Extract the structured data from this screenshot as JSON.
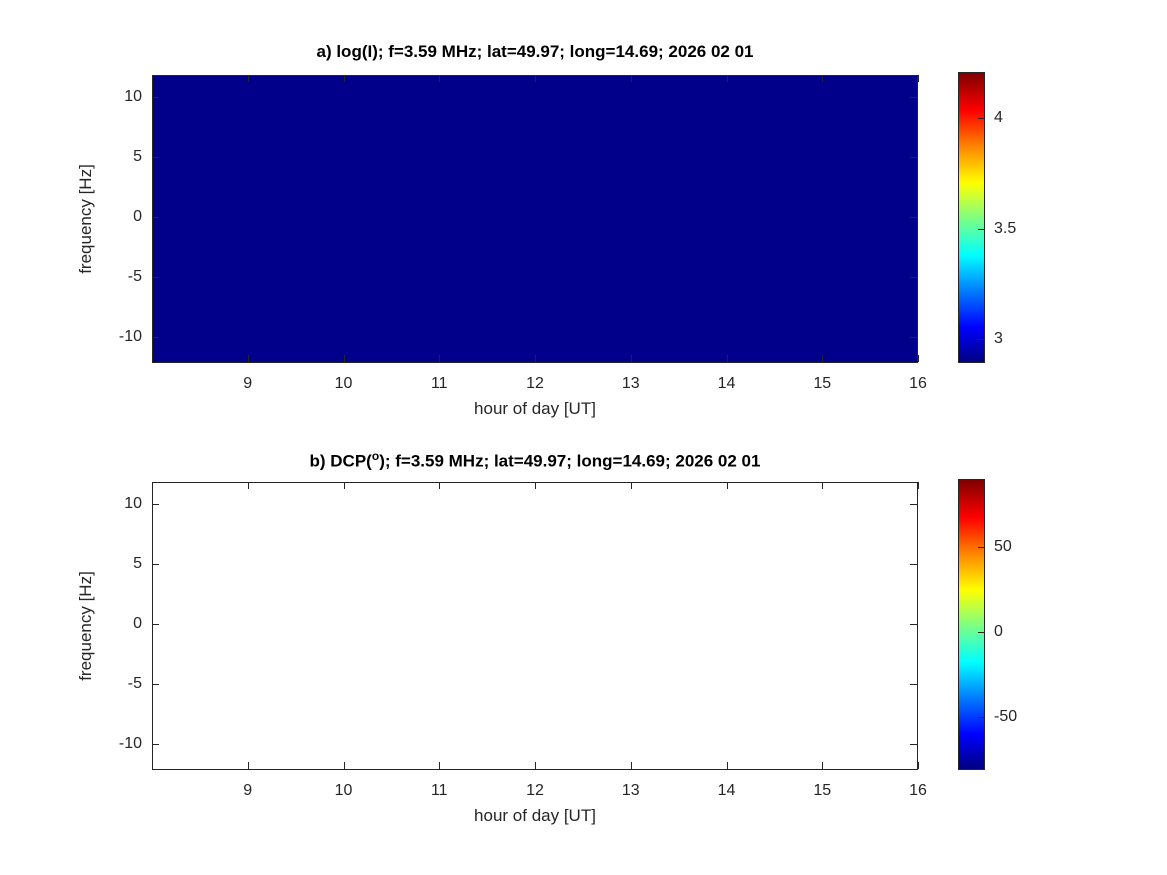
{
  "figure": {
    "background": "#ffffff",
    "axis_color": "#262626",
    "text_color": "#262626",
    "colormap": {
      "name": "jet",
      "stops": [
        "#000080 0%",
        "#0000ff 12%",
        "#0080ff 25%",
        "#00ffff 37%",
        "#80ff80 50%",
        "#ffff00 62%",
        "#ff8000 75%",
        "#ff0000 87%",
        "#800000 100%"
      ]
    }
  },
  "chart_data": [
    {
      "type": "heatmap",
      "panel": "a",
      "title": "a) log(I); f=3.59 MHz;  lat=49.97; long=14.69; 2026 02 01",
      "xlabel": "hour of day [UT]",
      "ylabel": "frequency [Hz]",
      "xlim": [
        8,
        16
      ],
      "ylim": [
        -12.2,
        11.8
      ],
      "xticks": [
        9,
        10,
        11,
        12,
        13,
        14,
        15,
        16
      ],
      "yticks": [
        10,
        5,
        0,
        -5,
        -10
      ],
      "colorbar": {
        "ticks": [
          3,
          3.5,
          4
        ],
        "range": [
          2.89,
          4.21
        ]
      },
      "values": "uniform field at colormap minimum (~2.9) over all hours and frequencies - solid dark blue",
      "fill_color": "#00008b"
    },
    {
      "type": "heatmap",
      "panel": "b",
      "title_prefix": "b) DCP(",
      "title_sup": "o",
      "title_suffix": "); f=3.59 MHz; lat=49.97; long=14.69; 2026 02 01",
      "xlabel": "hour of day [UT]",
      "ylabel": "frequency [Hz]",
      "xlim": [
        8,
        16
      ],
      "ylim": [
        -12.2,
        11.8
      ],
      "xticks": [
        9,
        10,
        11,
        12,
        13,
        14,
        15,
        16
      ],
      "yticks": [
        10,
        5,
        0,
        -5,
        -10
      ],
      "colorbar": {
        "ticks": [
          -50,
          0,
          50
        ],
        "range": [
          -81,
          90
        ]
      },
      "values": "no data displayed - blank white axes",
      "fill_color": "#ffffff"
    }
  ]
}
